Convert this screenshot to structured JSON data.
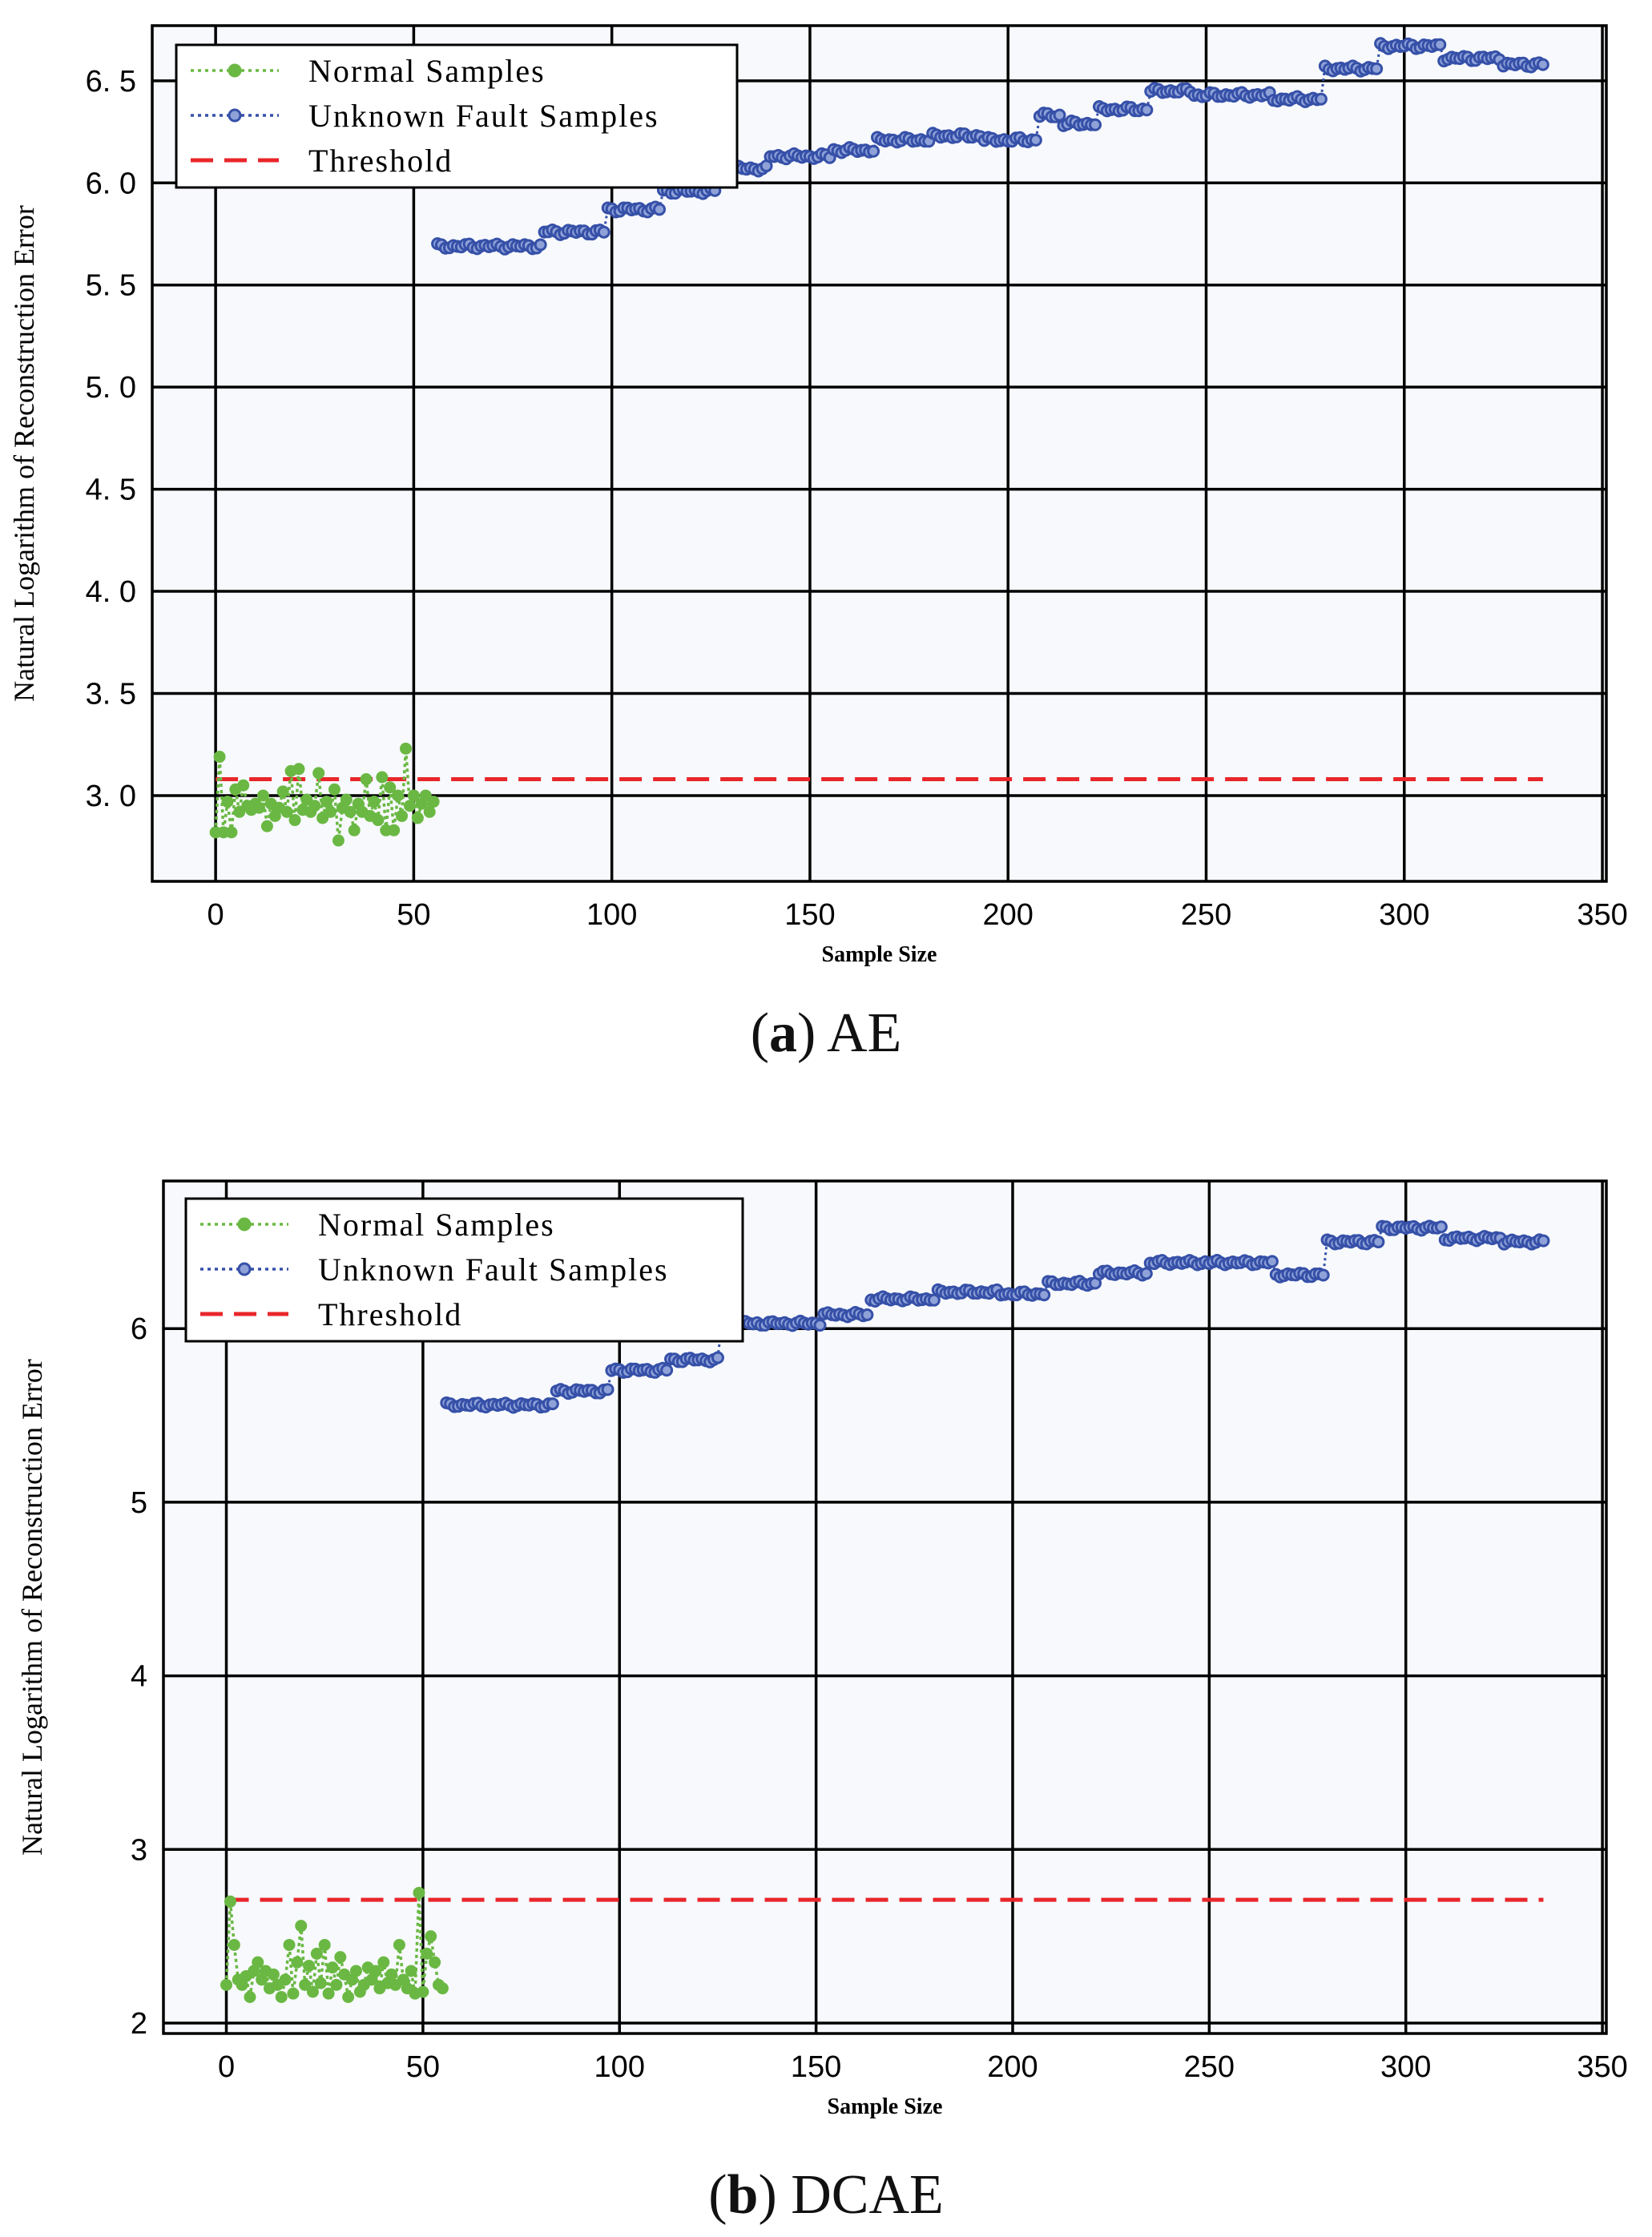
{
  "chart_data": [
    {
      "type": "line",
      "title": "",
      "caption_letter": "a",
      "caption_text": "AE",
      "xlabel": "Sample Size",
      "ylabel": "Natural Logarithm of Reconstruction Error",
      "xlim": [
        -16,
        351
      ],
      "ylim": [
        2.58,
        6.77
      ],
      "xticks": [
        0,
        50,
        100,
        150,
        200,
        250,
        300,
        350
      ],
      "yticks": [
        3.0,
        3.5,
        4.0,
        4.5,
        5.0,
        5.5,
        6.0,
        6.5
      ],
      "ytick_labels": [
        "3. 0",
        "3. 5",
        "4. 0",
        "4. 5",
        "5. 0",
        "5. 5",
        "6. 0",
        "6. 5"
      ],
      "grid": true,
      "legend_position": "top-left",
      "series": [
        {
          "name": "Normal Samples",
          "color": "#6ab843",
          "style": "dotted-circle",
          "x": [
            0,
            1,
            2,
            3,
            4,
            5,
            6,
            7,
            8,
            9,
            10,
            11,
            12,
            13,
            14,
            15,
            16,
            17,
            18,
            19,
            20,
            21,
            22,
            23,
            24,
            25,
            26,
            27,
            28,
            29,
            30,
            31,
            32,
            33,
            34,
            35,
            36,
            37,
            38,
            39,
            40,
            41,
            42,
            43,
            44,
            45,
            46,
            47,
            48,
            49,
            50,
            51,
            52,
            53,
            54,
            55
          ],
          "values": [
            2.82,
            3.19,
            2.82,
            2.97,
            2.82,
            3.03,
            2.92,
            3.05,
            2.95,
            2.93,
            2.96,
            2.94,
            3.0,
            2.85,
            2.96,
            2.9,
            2.94,
            3.02,
            2.92,
            3.12,
            2.88,
            3.13,
            2.93,
            2.98,
            2.92,
            2.95,
            3.11,
            2.89,
            2.97,
            2.92,
            3.03,
            2.78,
            2.94,
            2.98,
            2.92,
            2.83,
            2.96,
            2.92,
            3.08,
            2.9,
            2.97,
            2.88,
            3.09,
            2.83,
            3.04,
            2.83,
            3.0,
            2.9,
            3.23,
            2.95,
            3.0,
            2.89,
            2.96,
            3.0,
            2.92,
            2.97
          ]
        },
        {
          "name": "Unknown Fault Samples",
          "color": "#3650a8",
          "style": "dotted-circle",
          "x_start": 56,
          "x_end": 335,
          "segments": [
            {
              "from": 56,
              "to": 82,
              "value": 5.69
            },
            {
              "from": 83,
              "to": 98,
              "value": 5.76
            },
            {
              "from": 99,
              "to": 112,
              "value": 5.87
            },
            {
              "from": 113,
              "to": 126,
              "value": 5.96
            },
            {
              "from": 127,
              "to": 139,
              "value": 6.07
            },
            {
              "from": 140,
              "to": 155,
              "value": 6.13
            },
            {
              "from": 156,
              "to": 166,
              "value": 6.16
            },
            {
              "from": 167,
              "to": 180,
              "value": 6.21
            },
            {
              "from": 181,
              "to": 193,
              "value": 6.23
            },
            {
              "from": 194,
              "to": 207,
              "value": 6.21
            },
            {
              "from": 208,
              "to": 213,
              "value": 6.33
            },
            {
              "from": 214,
              "to": 222,
              "value": 6.29
            },
            {
              "from": 223,
              "to": 235,
              "value": 6.36
            },
            {
              "from": 236,
              "to": 246,
              "value": 6.45
            },
            {
              "from": 247,
              "to": 266,
              "value": 6.43
            },
            {
              "from": 267,
              "to": 279,
              "value": 6.41
            },
            {
              "from": 280,
              "to": 293,
              "value": 6.56
            },
            {
              "from": 294,
              "to": 309,
              "value": 6.67
            },
            {
              "from": 310,
              "to": 324,
              "value": 6.61
            },
            {
              "from": 325,
              "to": 335,
              "value": 6.58
            }
          ]
        },
        {
          "name": "Threshold",
          "color": "#e8262b",
          "style": "dashed",
          "x": [
            0,
            335
          ],
          "values": [
            3.08,
            3.08
          ]
        }
      ]
    },
    {
      "type": "line",
      "title": "",
      "caption_letter": "b",
      "caption_text": "DCAE",
      "xlabel": "Sample Size",
      "ylabel": "Natural Logarithm of Reconstruction Error",
      "xlim": [
        -16,
        351
      ],
      "ylim": [
        1.94,
        6.85
      ],
      "xticks": [
        0,
        50,
        100,
        150,
        200,
        250,
        300,
        350
      ],
      "yticks": [
        2,
        3,
        4,
        5,
        6
      ],
      "ytick_labels": [
        "2",
        "3",
        "4",
        "5",
        "6"
      ],
      "grid": true,
      "legend_position": "top-left",
      "series": [
        {
          "name": "Normal Samples",
          "color": "#6ab843",
          "style": "dotted-circle",
          "x": [
            0,
            1,
            2,
            3,
            4,
            5,
            6,
            7,
            8,
            9,
            10,
            11,
            12,
            13,
            14,
            15,
            16,
            17,
            18,
            19,
            20,
            21,
            22,
            23,
            24,
            25,
            26,
            27,
            28,
            29,
            30,
            31,
            32,
            33,
            34,
            35,
            36,
            37,
            38,
            39,
            40,
            41,
            42,
            43,
            44,
            45,
            46,
            47,
            48,
            49,
            50,
            51,
            52,
            53,
            54,
            55
          ],
          "values": [
            2.22,
            2.7,
            2.45,
            2.25,
            2.22,
            2.27,
            2.15,
            2.3,
            2.35,
            2.25,
            2.3,
            2.2,
            2.28,
            2.22,
            2.15,
            2.25,
            2.45,
            2.17,
            2.35,
            2.56,
            2.22,
            2.33,
            2.18,
            2.4,
            2.23,
            2.45,
            2.17,
            2.32,
            2.22,
            2.38,
            2.28,
            2.15,
            2.25,
            2.3,
            2.18,
            2.22,
            2.32,
            2.25,
            2.3,
            2.2,
            2.35,
            2.23,
            2.28,
            2.22,
            2.45,
            2.25,
            2.2,
            2.3,
            2.17,
            2.75,
            2.18,
            2.4,
            2.5,
            2.35,
            2.22,
            2.2
          ]
        },
        {
          "name": "Unknown Fault Samples",
          "color": "#3650a8",
          "style": "dotted-circle",
          "x_start": 56,
          "x_end": 335,
          "segments": [
            {
              "from": 56,
              "to": 83,
              "value": 5.56
            },
            {
              "from": 84,
              "to": 97,
              "value": 5.64
            },
            {
              "from": 98,
              "to": 112,
              "value": 5.76
            },
            {
              "from": 113,
              "to": 125,
              "value": 5.82
            },
            {
              "from": 126,
              "to": 134,
              "value": 6.03
            },
            {
              "from": 135,
              "to": 151,
              "value": 6.03
            },
            {
              "from": 152,
              "to": 163,
              "value": 6.08
            },
            {
              "from": 164,
              "to": 180,
              "value": 6.17
            },
            {
              "from": 181,
              "to": 196,
              "value": 6.21
            },
            {
              "from": 197,
              "to": 208,
              "value": 6.2
            },
            {
              "from": 209,
              "to": 221,
              "value": 6.26
            },
            {
              "from": 222,
              "to": 234,
              "value": 6.32
            },
            {
              "from": 235,
              "to": 249,
              "value": 6.38
            },
            {
              "from": 250,
              "to": 266,
              "value": 6.38
            },
            {
              "from": 267,
              "to": 279,
              "value": 6.31
            },
            {
              "from": 280,
              "to": 293,
              "value": 6.5
            },
            {
              "from": 294,
              "to": 309,
              "value": 6.58
            },
            {
              "from": 310,
              "to": 324,
              "value": 6.52
            },
            {
              "from": 325,
              "to": 335,
              "value": 6.5
            }
          ]
        },
        {
          "name": "Threshold",
          "color": "#e8262b",
          "style": "dashed",
          "x": [
            0,
            335
          ],
          "values": [
            2.71,
            2.71
          ]
        }
      ]
    }
  ]
}
